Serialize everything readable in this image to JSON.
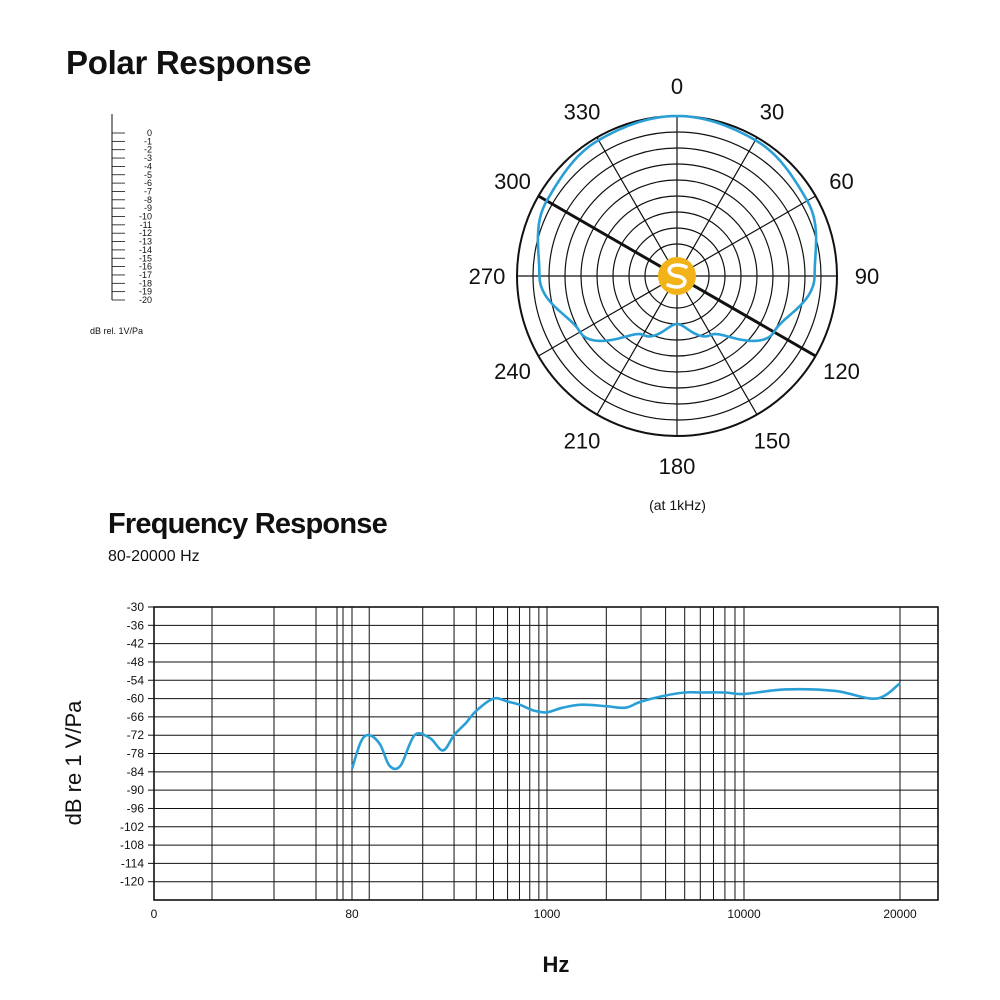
{
  "polar": {
    "title": "Polar Response",
    "note": "(at 1kHz)",
    "scale_unit": "dB rel. 1V/Pa",
    "scale_labels": [
      "0",
      "-1",
      "-2",
      "-3",
      "-4",
      "-5",
      "-6",
      "-7",
      "-8",
      "-9",
      "-10",
      "-11",
      "-12",
      "-13",
      "-14",
      "-15",
      "-16",
      "-17",
      "-18",
      "-19",
      "-20"
    ]
  },
  "frequency": {
    "title": "Frequency Response",
    "subtitle": "80-20000 Hz"
  },
  "chart_data": [
    {
      "type": "polar",
      "title": "Polar Response",
      "angles": [
        "0",
        "30",
        "60",
        "90",
        "120",
        "150",
        "180",
        "210",
        "240",
        "270",
        "300",
        "330"
      ],
      "r_range_db": [
        -20,
        0
      ],
      "pattern": "cardioid",
      "series": [
        {
          "color": "#2a9fd6",
          "points": [
            {
              "angle": 0,
              "db": 0
            },
            {
              "angle": 30,
              "db": -0.4
            },
            {
              "angle": 60,
              "db": -1.2
            },
            {
              "angle": 90,
              "db": -2.8
            },
            {
              "angle": 120,
              "db": -6
            },
            {
              "angle": 150,
              "db": -11.5
            },
            {
              "angle": 180,
              "db": -14
            },
            {
              "angle": 210,
              "db": -11.5
            },
            {
              "angle": 240,
              "db": -6
            },
            {
              "angle": 270,
              "db": -2.8
            },
            {
              "angle": 300,
              "db": -1.2
            },
            {
              "angle": 330,
              "db": -0.4
            }
          ]
        }
      ]
    },
    {
      "type": "line",
      "title": "Frequency Response",
      "subtitle": "80-20000 Hz",
      "xlabel": "Hz",
      "ylabel": "dB re 1 V/Pa",
      "ylim": [
        -126,
        -30
      ],
      "y_ticks": [
        -30,
        -36,
        -42,
        -48,
        -54,
        -60,
        -66,
        -72,
        -78,
        -84,
        -90,
        -96,
        -102,
        -108,
        -114,
        -120
      ],
      "x_ticks": [
        "0",
        "80",
        "1000",
        "10000",
        "20000"
      ],
      "grid": true,
      "series": [
        {
          "color": "#2a9fd6",
          "x": [
            80,
            90,
            100,
            115,
            130,
            150,
            180,
            220,
            260,
            300,
            350,
            400,
            500,
            600,
            700,
            850,
            1000,
            1200,
            1500,
            2000,
            2500,
            3000,
            4000,
            5000,
            6000,
            8000,
            10000,
            12000,
            15000,
            18000,
            20000
          ],
          "y": [
            -83,
            -74,
            -72,
            -75,
            -82,
            -82,
            -72,
            -73,
            -77,
            -72,
            -68,
            -64,
            -60,
            -61,
            -62,
            -64,
            -64.5,
            -63,
            -62,
            -62.5,
            -63,
            -61,
            -59,
            -58,
            -58,
            -58,
            -58.5,
            -57,
            -57.5,
            -60,
            -55
          ]
        }
      ]
    }
  ]
}
